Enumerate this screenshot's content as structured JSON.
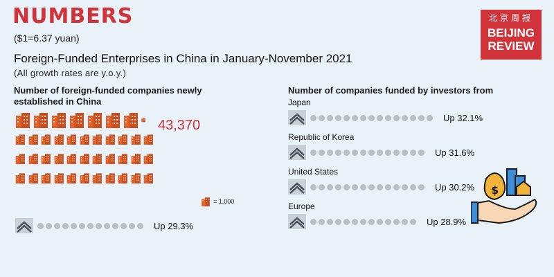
{
  "header": {
    "title": "NUMBERS",
    "exchange_rate": "($1=6.37 yuan)",
    "headline": "Foreign-Funded Enterprises in China in January-November 2021",
    "note": "(All growth rates are y.o.y.)"
  },
  "logo": {
    "chinese": "北京周报",
    "line1": "BEIJING",
    "line2": "REVIEW"
  },
  "left_section": {
    "label": "Number of foreign-funded companies newly established in China",
    "total": "43,370",
    "icon_unit": "= 1,000",
    "growth": "Up 29.3%"
  },
  "right_section": {
    "label": "Number of companies funded by investors from",
    "items": [
      {
        "name": "Japan",
        "growth": "Up 32.1%"
      },
      {
        "name": "Republic of Korea",
        "growth": "Up 31.6%"
      },
      {
        "name": "United States",
        "growth": "Up 30.2%"
      },
      {
        "name": "Europe",
        "growth": "Up 28.9%"
      }
    ]
  },
  "colors": {
    "accent": "#d0333a",
    "building": "#e0622a",
    "dot": "#b9bfc7",
    "background": "#e9f1f9"
  }
}
